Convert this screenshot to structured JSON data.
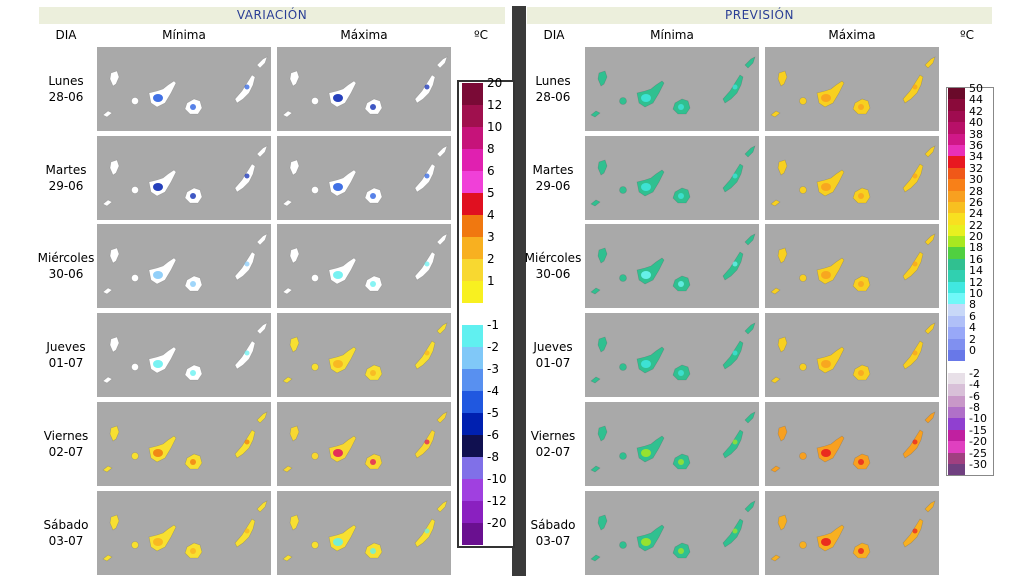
{
  "left": {
    "title": "VARIACIÓN",
    "col_day": "DIA",
    "col_min": "Mínima",
    "col_max": "Máxima",
    "unit": "ºC"
  },
  "right": {
    "title": "PREVISIÓN",
    "col_day": "DIA",
    "col_min": "Mínima",
    "col_max": "Máxima",
    "unit": "ºC"
  },
  "days": [
    {
      "name": "Lunes",
      "date": "28-06"
    },
    {
      "name": "Martes",
      "date": "29-06"
    },
    {
      "name": "Miércoles",
      "date": "30-06"
    },
    {
      "name": "Jueves",
      "date": "01-07"
    },
    {
      "name": "Viernes",
      "date": "02-07"
    },
    {
      "name": "Sábado",
      "date": "03-07"
    }
  ],
  "variation_scale": [
    {
      "label": "20",
      "color": "#7a0a36"
    },
    {
      "label": "12",
      "color": "#a0104e"
    },
    {
      "label": "10",
      "color": "#c6137a"
    },
    {
      "label": "8",
      "color": "#e020b0"
    },
    {
      "label": "6",
      "color": "#f040d8"
    },
    {
      "label": "5",
      "color": "#e01020"
    },
    {
      "label": "4",
      "color": "#f07810"
    },
    {
      "label": "3",
      "color": "#f8b020"
    },
    {
      "label": "2",
      "color": "#f8d830"
    },
    {
      "label": "1",
      "color": "#f8f020"
    },
    {
      "label": "",
      "color": "#ffffff"
    },
    {
      "label": "-1",
      "color": "#60f0f0"
    },
    {
      "label": "-2",
      "color": "#80c8f8"
    },
    {
      "label": "-3",
      "color": "#5890f0"
    },
    {
      "label": "-4",
      "color": "#2058e0"
    },
    {
      "label": "-5",
      "color": "#0020b0"
    },
    {
      "label": "-6",
      "color": "#101050"
    },
    {
      "label": "-8",
      "color": "#8070e8"
    },
    {
      "label": "-10",
      "color": "#a040e0"
    },
    {
      "label": "-12",
      "color": "#8a20c0"
    },
    {
      "label": "-20",
      "color": "#6a1090"
    }
  ],
  "forecast_scale": [
    {
      "label": "50",
      "color": "#6a0a2a"
    },
    {
      "label": "44",
      "color": "#8a0a3a"
    },
    {
      "label": "42",
      "color": "#a00c50"
    },
    {
      "label": "40",
      "color": "#b81068"
    },
    {
      "label": "38",
      "color": "#d01888"
    },
    {
      "label": "36",
      "color": "#e830b8"
    },
    {
      "label": "34",
      "color": "#e81820"
    },
    {
      "label": "32",
      "color": "#f05818"
    },
    {
      "label": "30",
      "color": "#f88018"
    },
    {
      "label": "28",
      "color": "#f8a020"
    },
    {
      "label": "26",
      "color": "#f8c020"
    },
    {
      "label": "24",
      "color": "#f8e020"
    },
    {
      "label": "22",
      "color": "#e8f020"
    },
    {
      "label": "20",
      "color": "#a8e820"
    },
    {
      "label": "18",
      "color": "#50d040"
    },
    {
      "label": "16",
      "color": "#30c090"
    },
    {
      "label": "14",
      "color": "#30d0b0"
    },
    {
      "label": "12",
      "color": "#40e8e0"
    },
    {
      "label": "10",
      "color": "#70f8f8"
    },
    {
      "label": "8",
      "color": "#c8d8f8"
    },
    {
      "label": "6",
      "color": "#b0c0f8"
    },
    {
      "label": "4",
      "color": "#98a8f8"
    },
    {
      "label": "2",
      "color": "#8090f0"
    },
    {
      "label": "0",
      "color": "#6878e8"
    },
    {
      "label": "",
      "color": "#ffffff"
    },
    {
      "label": "-2",
      "color": "#e8e0e8"
    },
    {
      "label": "-4",
      "color": "#d8c0d8"
    },
    {
      "label": "-6",
      "color": "#c898c8"
    },
    {
      "label": "-8",
      "color": "#b070c8"
    },
    {
      "label": "-10",
      "color": "#9040d0"
    },
    {
      "label": "-15",
      "color": "#c020a0"
    },
    {
      "label": "-20",
      "color": "#e040c0"
    },
    {
      "label": "-25",
      "color": "#a04080"
    },
    {
      "label": "-30",
      "color": "#704080"
    }
  ],
  "maps": {
    "var_min": [
      {
        "base": "#ffffff",
        "accent": "#2058e0"
      },
      {
        "base": "#ffffff",
        "accent": "#0020b0"
      },
      {
        "base": "#ffffff",
        "accent": "#80c8f8"
      },
      {
        "base": "#ffffff",
        "accent": "#60f0f0"
      },
      {
        "base": "#f8e030",
        "accent": "#f07810"
      },
      {
        "base": "#f8e030",
        "accent": "#f8b020"
      }
    ],
    "var_max": [
      {
        "base": "#ffffff",
        "accent": "#0020b0"
      },
      {
        "base": "#ffffff",
        "accent": "#2058e0"
      },
      {
        "base": "#ffffff",
        "accent": "#60f0f0"
      },
      {
        "base": "#f8e030",
        "accent": "#f8b020"
      },
      {
        "base": "#f8d830",
        "accent": "#e01060"
      },
      {
        "base": "#f8e030",
        "accent": "#60f0f0"
      }
    ],
    "prev_min": [
      {
        "base": "#30c090",
        "accent": "#40e8e0"
      },
      {
        "base": "#30c090",
        "accent": "#40e8e0"
      },
      {
        "base": "#30c090",
        "accent": "#70f8f8"
      },
      {
        "base": "#30c090",
        "accent": "#40e8e0"
      },
      {
        "base": "#30c090",
        "accent": "#a8e820"
      },
      {
        "base": "#30c090",
        "accent": "#a8e820"
      }
    ],
    "prev_max": [
      {
        "base": "#f8d020",
        "accent": "#f8a020"
      },
      {
        "base": "#f8d020",
        "accent": "#f8a020"
      },
      {
        "base": "#f8d020",
        "accent": "#f8a020"
      },
      {
        "base": "#f8d020",
        "accent": "#f8a020"
      },
      {
        "base": "#f8a020",
        "accent": "#e81820"
      },
      {
        "base": "#f8b020",
        "accent": "#e81820"
      }
    ]
  }
}
